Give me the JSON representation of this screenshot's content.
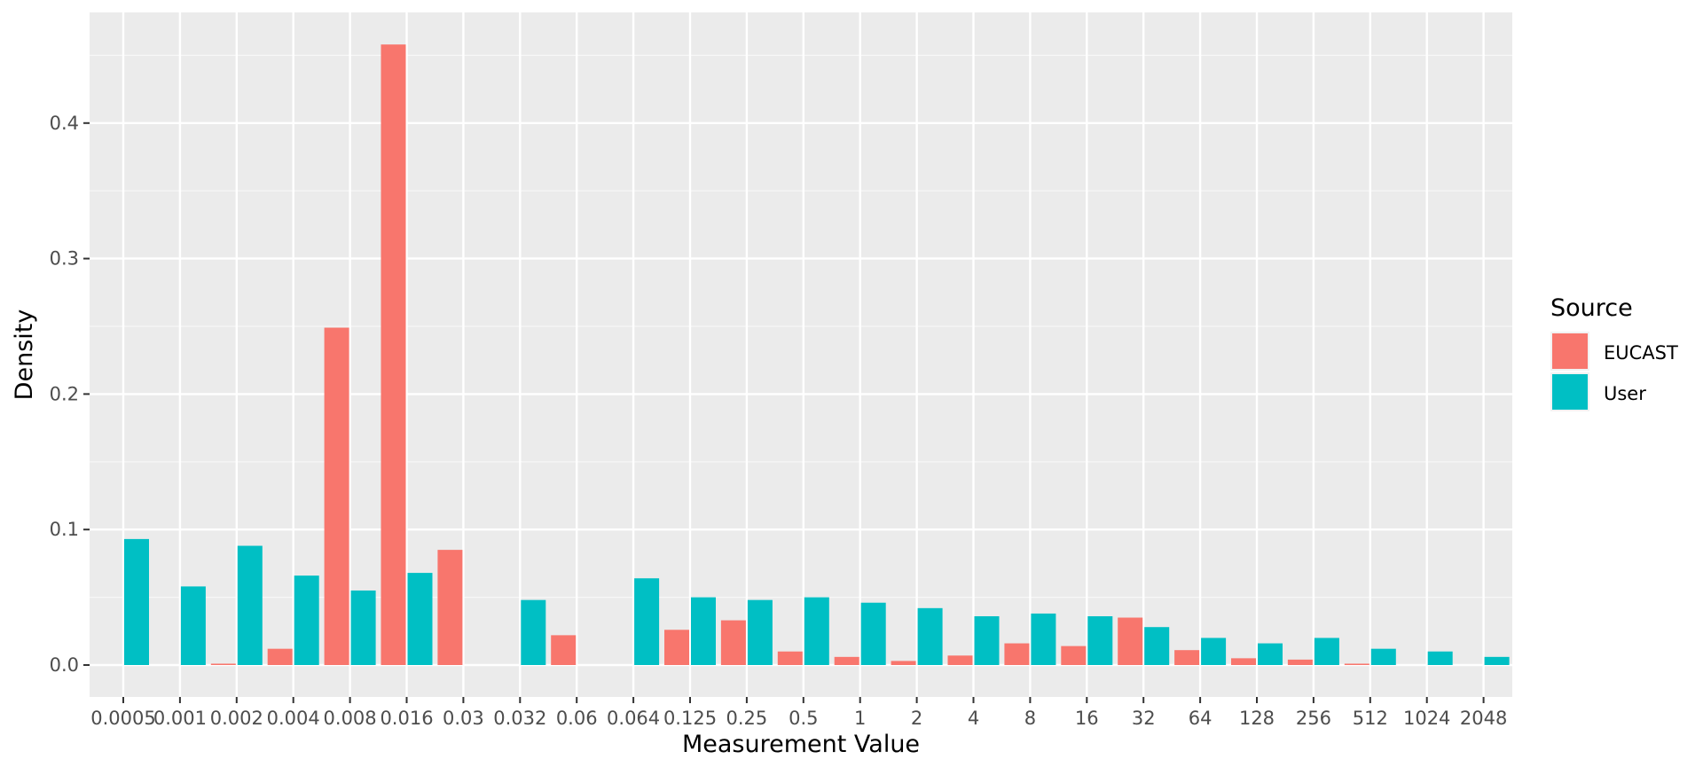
{
  "chart_data": {
    "type": "bar",
    "xlabel": "Measurement Value",
    "ylabel": "Density",
    "categories": [
      "0.0005",
      "0.001",
      "0.002",
      "0.004",
      "0.008",
      "0.016",
      "0.03",
      "0.032",
      "0.06",
      "0.064",
      "0.125",
      "0.25",
      "0.5",
      "1",
      "2",
      "4",
      "8",
      "16",
      "32",
      "64",
      "128",
      "256",
      "512",
      "1024",
      "2048"
    ],
    "ylim": [
      -0.023,
      0.48
    ],
    "yticks": [
      0.0,
      0.1,
      0.2,
      0.3,
      0.4
    ],
    "ytick_labels": [
      "0.0",
      "0.1",
      "0.2",
      "0.3",
      "0.4"
    ],
    "grid": true,
    "background": "#ebebeb",
    "legend": {
      "title": "Source",
      "position": "right"
    },
    "series": [
      {
        "name": "EUCAST",
        "color": "#f8766d",
        "values": [
          null,
          null,
          0.001,
          0.012,
          0.249,
          0.458,
          0.085,
          null,
          0.022,
          null,
          0.026,
          0.033,
          0.01,
          0.006,
          0.003,
          0.007,
          0.016,
          0.014,
          0.035,
          0.011,
          0.005,
          0.004,
          0.001,
          null,
          null
        ]
      },
      {
        "name": "User",
        "color": "#00bfc4",
        "values": [
          0.093,
          0.058,
          0.088,
          0.066,
          0.055,
          0.068,
          null,
          0.048,
          null,
          0.064,
          0.05,
          0.048,
          0.05,
          0.046,
          0.042,
          0.036,
          0.038,
          0.036,
          0.028,
          0.02,
          0.016,
          0.02,
          0.012,
          0.01,
          0.006
        ]
      }
    ]
  }
}
